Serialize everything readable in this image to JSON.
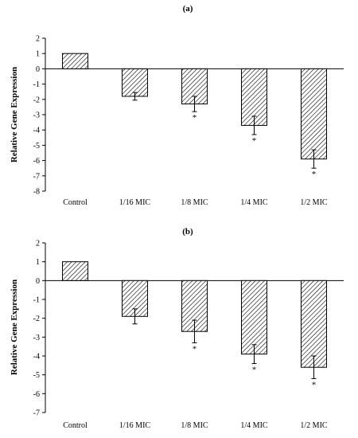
{
  "chart_data": [
    {
      "type": "bar",
      "title": "(a)",
      "ylabel": "Relative Gene Expression",
      "xlabel": "",
      "categories": [
        "Control",
        "1/16 MIC",
        "1/8 MIC",
        "1/4 MIC",
        "1/2 MIC"
      ],
      "values": [
        1,
        -1.8,
        -2.3,
        -3.7,
        -5.9
      ],
      "errors": [
        0,
        0.25,
        0.5,
        0.6,
        0.6
      ],
      "annotations": [
        "",
        "",
        "*",
        "*",
        "*"
      ],
      "ylim": [
        -8,
        2
      ],
      "yticks": [
        "2",
        "1",
        "0",
        "-1",
        "-2",
        "-3",
        "-4",
        "-5",
        "-6",
        "-7",
        "-8"
      ],
      "bar_fill": "hatched",
      "grid": false
    },
    {
      "type": "bar",
      "title": "(b)",
      "ylabel": "Relative Gene Expression",
      "xlabel": "",
      "categories": [
        "Control",
        "1/16 MIC",
        "1/8 MIC",
        "1/4 MIC",
        "1/2 MIC"
      ],
      "values": [
        1,
        -1.9,
        -2.7,
        -3.9,
        -4.6
      ],
      "errors": [
        0,
        0.4,
        0.6,
        0.5,
        0.6
      ],
      "annotations": [
        "",
        "",
        "*",
        "*",
        "*"
      ],
      "ylim": [
        -7,
        2
      ],
      "yticks": [
        "2",
        "1",
        "0",
        "-1",
        "-2",
        "-3",
        "-4",
        "-5",
        "-6",
        "-7"
      ],
      "bar_fill": "hatched",
      "grid": false
    }
  ],
  "colors": {
    "bar_stroke": "#000000",
    "hatch": "#000000",
    "background": "#ffffff"
  }
}
